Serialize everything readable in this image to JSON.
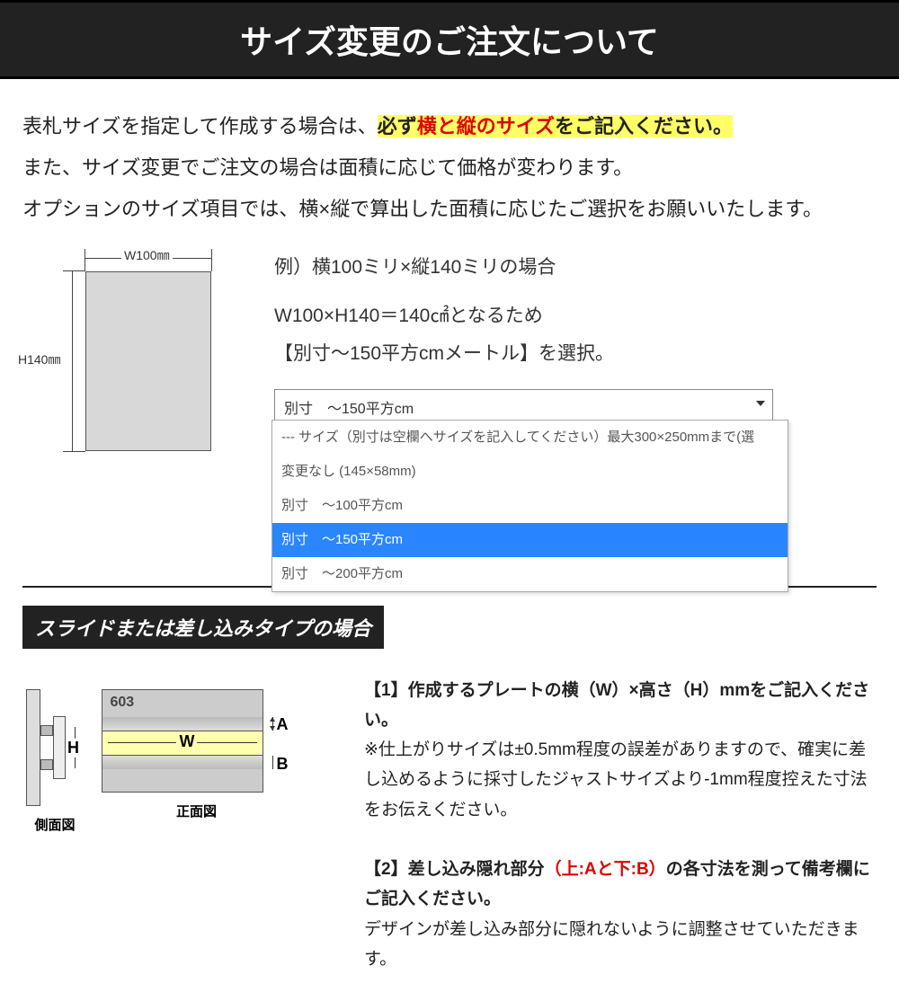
{
  "header": {
    "title": "サイズ変更のご注文について"
  },
  "intro": {
    "line1a": "表札サイズを指定して作成する場合は、",
    "line1b": "必ず",
    "line1c": "横と縦のサイズ",
    "line1d": "をご記入ください。",
    "line2": "また、サイズ変更でご注文の場合は面積に応じて価格が変わります。",
    "line3": "オプションのサイズ項目では、横×縦で算出した面積に応じたご選択をお願いいたします。"
  },
  "diagram": {
    "w_label": "W100㎜",
    "h_label": "H140㎜",
    "plate_color": "#d8d8d8",
    "border_color": "#555"
  },
  "example": {
    "title": "例）横100ミリ×縦140ミリの場合",
    "line1": "W100×H140＝140㎠となるため",
    "line2": "【別寸～150平方cmメートル】を選択。"
  },
  "dropdown": {
    "selected": "別寸　～150平方cm",
    "items": [
      {
        "label": "--- サイズ（別寸は空欄へサイズを記入してください）最大300×250mmまで(選",
        "sel": false
      },
      {
        "label": "変更なし (145×58mm)",
        "sel": false
      },
      {
        "label": "別寸　～100平方cm",
        "sel": false
      },
      {
        "label": "別寸　～150平方cm",
        "sel": true
      },
      {
        "label": "別寸　～200平方cm",
        "sel": false
      }
    ],
    "sel_bg": "#2a86ff",
    "sel_fg": "#ffffff"
  },
  "section2": {
    "bar": "スライドまたは差し込みタイプの場合",
    "p1_title": "【1】作成するプレートの横（W）×高さ（H）mmをご記入ください。",
    "p1_body": "※仕上がりサイズは±0.5mm程度の誤差がありますので、確実に差し込めるように採寸したジャストサイズより-1mm程度控えた寸法をお伝えください。",
    "p2_a": "【2】差し込み隠れ部分",
    "p2_b": "（上:Aと下:B）",
    "p2_c": "の各寸法を測って備考欄にご記入ください。",
    "p2_body": "デザインが差し込み部分に隠れないように調整させていただきます。"
  },
  "slide_diagram": {
    "side_label": "側面図",
    "front_label": "正面図",
    "H": "H",
    "W": "W",
    "A": "A",
    "B": "B",
    "number": "603",
    "strip_color": "#ffffb0",
    "plate_color": "#ccc"
  }
}
